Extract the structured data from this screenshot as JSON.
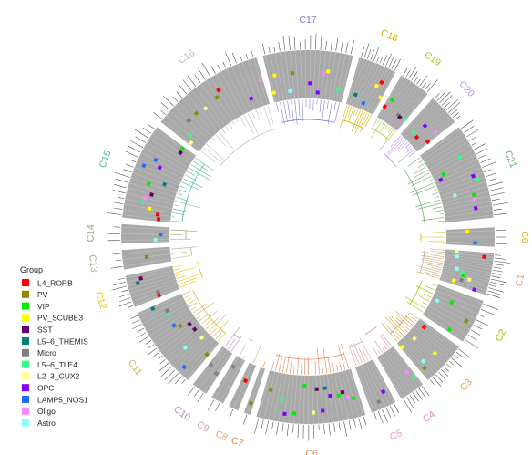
{
  "chart_data": {
    "type": "circular-dendrogram-heatmap",
    "legend": {
      "title": "Group",
      "placement": "left",
      "items": [
        {
          "name": "L4_RORB",
          "color": "#ff0000"
        },
        {
          "name": "PV",
          "color": "#8b8b00"
        },
        {
          "name": "VIP",
          "color": "#00ee00"
        },
        {
          "name": "PV_SCUBE3",
          "color": "#ffff00"
        },
        {
          "name": "SST",
          "color": "#660066"
        },
        {
          "name": "L5–6_THEMIS",
          "color": "#007f7f"
        },
        {
          "name": "Micro",
          "color": "#7f7f7f"
        },
        {
          "name": "L5–6_TLE4",
          "color": "#33ff88"
        },
        {
          "name": "L2–3_CUX2",
          "color": "#ffff88"
        },
        {
          "name": "OPC",
          "color": "#7f00ff"
        },
        {
          "name": "LAMP5_NOS1",
          "color": "#1e6fff"
        },
        {
          "name": "Oligo",
          "color": "#ff88ff"
        },
        {
          "name": "Astro",
          "color": "#88ffff"
        }
      ]
    },
    "clusters": [
      {
        "label": "C0",
        "color": "#d4b100",
        "leaves": 3
      },
      {
        "label": "C1",
        "color": "#c8a878",
        "leaves": 14
      },
      {
        "label": "C2",
        "color": "#a5c300",
        "leaves": 8
      },
      {
        "label": "C3",
        "color": "#d2a14a",
        "leaves": 12
      },
      {
        "label": "C4",
        "color": "#dc8cb4",
        "leaves": 7
      },
      {
        "label": "C5",
        "color": "#e8a0a8",
        "leaves": 6
      },
      {
        "label": "C6",
        "color": "#e08a5a",
        "leaves": 22
      },
      {
        "label": "C7",
        "color": "#e58a3a",
        "leaves": 1
      },
      {
        "label": "C8",
        "color": "#e6a87a",
        "leaves": 1
      },
      {
        "label": "C9",
        "color": "#c8a0b4",
        "leaves": 2
      },
      {
        "label": "C10",
        "color": "#b886b4",
        "leaves": 3
      },
      {
        "label": "C11",
        "color": "#d6b24a",
        "leaves": 18
      },
      {
        "label": "C12",
        "color": "#e6c200",
        "leaves": 8
      },
      {
        "label": "C13",
        "color": "#b8a888",
        "leaves": 3
      },
      {
        "label": "C14",
        "color": "#9aa070",
        "leaves": 3
      },
      {
        "label": "C15",
        "color": "#48c089",
        "leaves": 18
      },
      {
        "label": "C16",
        "color": "#bcbcbc",
        "leaves": 20
      },
      {
        "label": "C17",
        "color": "#8080c8",
        "leaves": 18
      },
      {
        "label": "C18",
        "color": "#d4b400",
        "leaves": 12
      },
      {
        "label": "C19",
        "color": "#9ccc30",
        "leaves": 10
      },
      {
        "label": "C20",
        "color": "#b890d0",
        "leaves": 10
      },
      {
        "label": "C21",
        "color": "#6aaa6a",
        "leaves": 20
      }
    ]
  }
}
